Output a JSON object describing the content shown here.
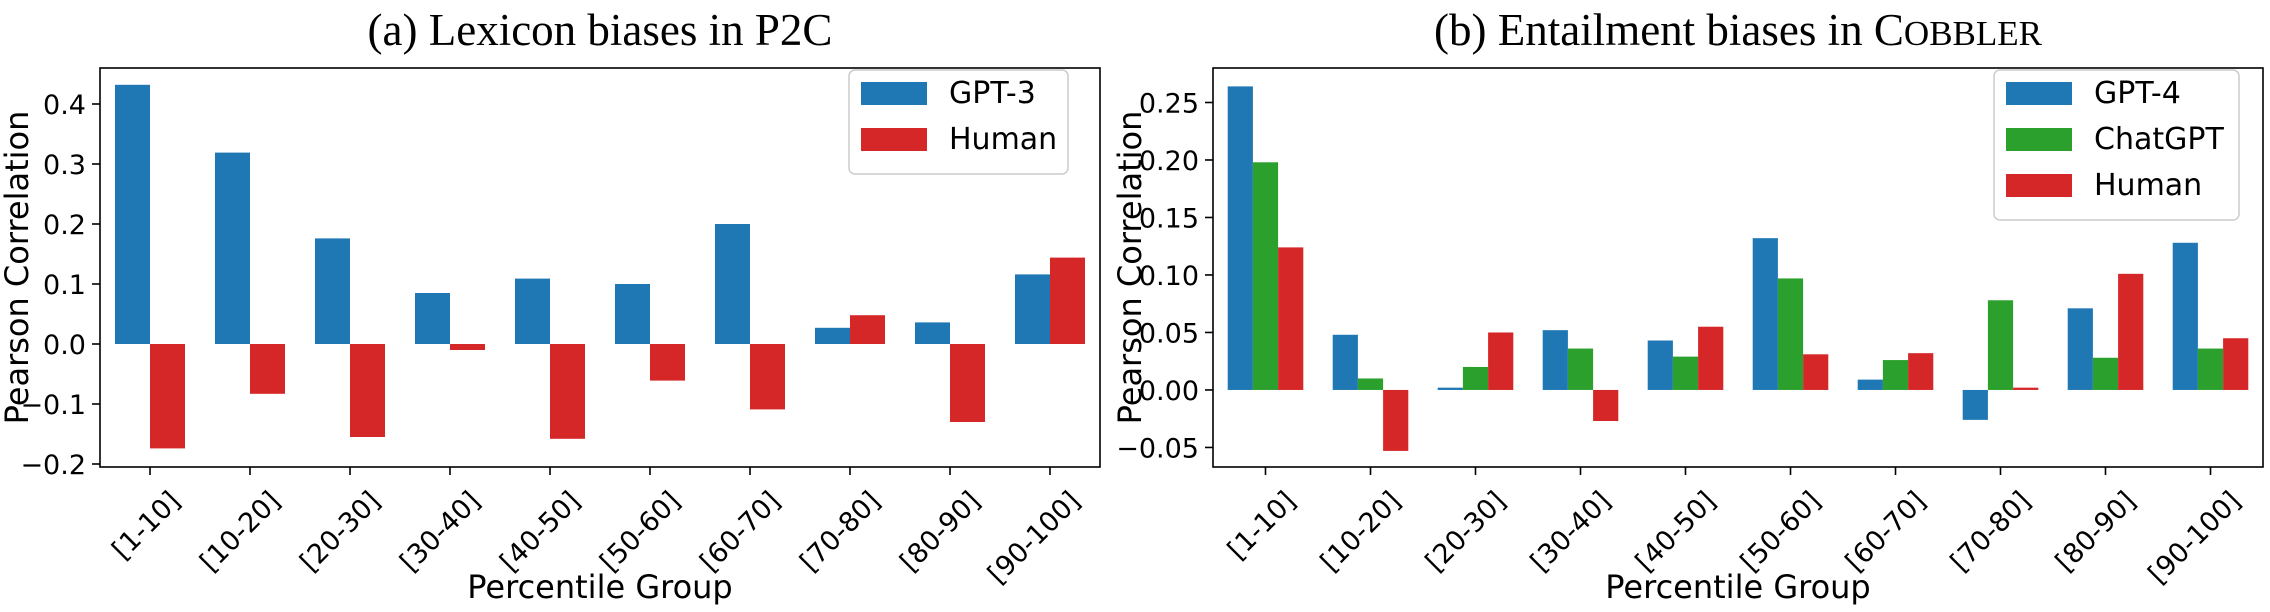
{
  "chart_data": [
    {
      "type": "bar",
      "title": "(a) Lexicon biases in P2C",
      "xlabel": "Percentile Group",
      "ylabel": "Pearson Correlation",
      "categories": [
        "[1-10]",
        "[10-20]",
        "[20-30]",
        "[30-40]",
        "[40-50]",
        "[50-60]",
        "[60-70]",
        "[70-80]",
        "[80-90]",
        "[90-100]"
      ],
      "series": [
        {
          "name": "GPT-3",
          "color": "#1f77b4",
          "values": [
            0.432,
            0.319,
            0.176,
            0.085,
            0.109,
            0.1,
            0.2,
            0.027,
            0.036,
            0.116
          ]
        },
        {
          "name": "Human",
          "color": "#d62728",
          "values": [
            -0.174,
            -0.083,
            -0.155,
            -0.01,
            -0.158,
            -0.061,
            -0.109,
            0.048,
            -0.13,
            0.144
          ]
        }
      ],
      "ylim": [
        -0.205,
        0.46
      ],
      "yticks": [
        -0.2,
        -0.1,
        0.0,
        0.1,
        0.2,
        0.3,
        0.4
      ],
      "ytick_labels": [
        "−0.2",
        "−0.1",
        "0.0",
        "0.1",
        "0.2",
        "0.3",
        "0.4"
      ],
      "grid": false,
      "legend_position": "top-right"
    },
    {
      "type": "bar",
      "title": "(b) Entailment biases in COBBLER",
      "xlabel": "Percentile Group",
      "ylabel": "Pearson Correlation",
      "categories": [
        "[1-10]",
        "[10-20]",
        "[20-30]",
        "[30-40]",
        "[40-50]",
        "[50-60]",
        "[60-70]",
        "[70-80]",
        "[80-90]",
        "[90-100]"
      ],
      "series": [
        {
          "name": "GPT-4",
          "color": "#1f77b4",
          "values": [
            0.264,
            0.048,
            0.002,
            0.052,
            0.043,
            0.132,
            0.009,
            -0.026,
            0.071,
            0.128
          ]
        },
        {
          "name": "ChatGPT",
          "color": "#2ca02c",
          "values": [
            0.198,
            0.01,
            0.02,
            0.036,
            0.029,
            0.097,
            0.026,
            0.078,
            0.028,
            0.036
          ]
        },
        {
          "name": "Human",
          "color": "#d62728",
          "values": [
            0.124,
            -0.053,
            0.05,
            -0.027,
            0.055,
            0.031,
            0.032,
            0.002,
            0.101,
            0.045
          ]
        }
      ],
      "ylim": [
        -0.067,
        0.28
      ],
      "yticks": [
        -0.05,
        0.0,
        0.05,
        0.1,
        0.15,
        0.2,
        0.25
      ],
      "ytick_labels": [
        "−0.05",
        "0.00",
        "0.05",
        "0.10",
        "0.15",
        "0.20",
        "0.25"
      ],
      "grid": false,
      "legend_position": "top-right"
    }
  ]
}
